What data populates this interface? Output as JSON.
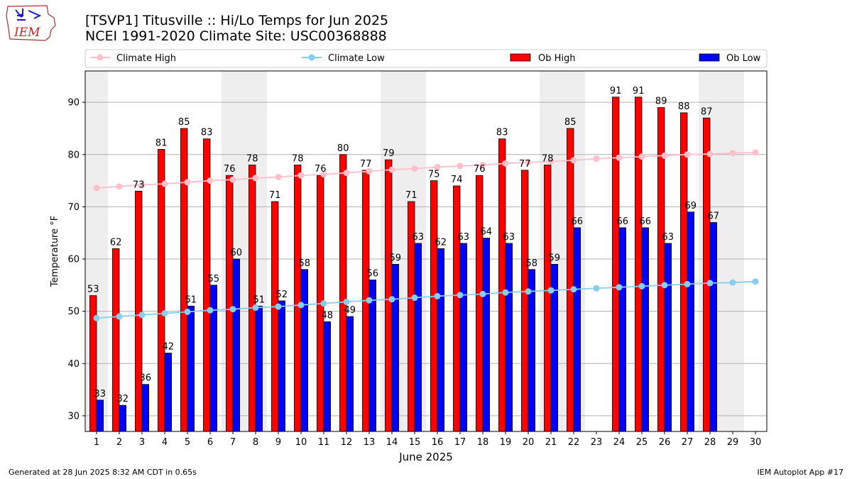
{
  "header": {
    "logo_text": "IEM",
    "title_line1": "[TSVP1] Titusville :: Hi/Lo Temps for Jun 2025",
    "title_line2": "NCEI 1991-2020 Climate Site: USC00368888"
  },
  "footer": {
    "left": "Generated at 28 Jun 2025 8:32 AM CDT in 0.65s",
    "right": "IEM Autoplot App #17"
  },
  "colors": {
    "climate_high": "#ffc0cb",
    "climate_low": "#87ceeb",
    "ob_high": "#ff0000",
    "ob_low": "#0000ff",
    "weekend_shade": "#eeeeee",
    "grid": "#b0b0b0"
  },
  "chart_data": {
    "type": "bar",
    "xlabel": "June 2025",
    "ylabel": "Temperature °F",
    "ylim": [
      27,
      96
    ],
    "yticks": [
      30,
      40,
      50,
      60,
      70,
      80,
      90
    ],
    "grid": "horizontal",
    "legend_position": "top",
    "legend": [
      "Climate High",
      "Climate Low",
      "Ob High",
      "Ob Low"
    ],
    "days": [
      1,
      2,
      3,
      4,
      5,
      6,
      7,
      8,
      9,
      10,
      11,
      12,
      13,
      14,
      15,
      16,
      17,
      18,
      19,
      20,
      21,
      22,
      23,
      24,
      25,
      26,
      27,
      28,
      29,
      30
    ],
    "shaded_days": [
      1,
      7,
      8,
      14,
      15,
      21,
      22,
      28,
      29
    ],
    "series": [
      {
        "name": "Ob High",
        "kind": "bar",
        "values": [
          53,
          62,
          73,
          81,
          85,
          83,
          76,
          78,
          71,
          78,
          76,
          80,
          77,
          79,
          71,
          75,
          74,
          76,
          83,
          77,
          78,
          85,
          null,
          91,
          91,
          89,
          88,
          87,
          null,
          null
        ]
      },
      {
        "name": "Ob Low",
        "kind": "bar",
        "values": [
          33,
          32,
          36,
          42,
          51,
          55,
          60,
          51,
          52,
          58,
          48,
          49,
          56,
          59,
          63,
          62,
          63,
          64,
          63,
          58,
          59,
          66,
          null,
          66,
          66,
          63,
          69,
          67,
          null,
          null
        ]
      },
      {
        "name": "Climate High",
        "kind": "line",
        "values": [
          73.6,
          73.9,
          74.2,
          74.4,
          74.7,
          75.0,
          75.2,
          75.5,
          75.7,
          76.0,
          76.2,
          76.5,
          76.8,
          77.1,
          77.3,
          77.6,
          77.8,
          78.0,
          78.3,
          78.5,
          78.7,
          78.9,
          79.2,
          79.4,
          79.6,
          79.8,
          80.0,
          80.1,
          80.3,
          80.4
        ]
      },
      {
        "name": "Climate Low",
        "kind": "line",
        "values": [
          48.7,
          49.0,
          49.3,
          49.6,
          49.9,
          50.2,
          50.4,
          50.7,
          50.9,
          51.2,
          51.5,
          51.8,
          52.1,
          52.3,
          52.6,
          52.9,
          53.1,
          53.3,
          53.6,
          53.8,
          54.0,
          54.2,
          54.4,
          54.6,
          54.8,
          55.0,
          55.2,
          55.4,
          55.5,
          55.7
        ]
      }
    ]
  }
}
